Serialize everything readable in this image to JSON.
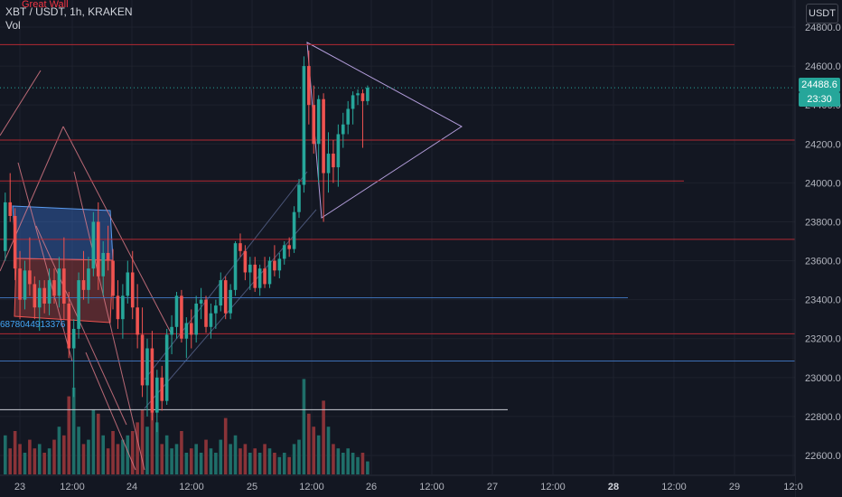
{
  "header": {
    "symbol": "XBT / USDT, 1h, KRAKEN",
    "volume_label": "Vol",
    "watermark": "Great Wall"
  },
  "currency_button": "USDT",
  "last_price_tag": "24488.6",
  "countdown_tag": "23:30",
  "annotation_text": "6878044913376",
  "colors": {
    "background": "#131722",
    "up": "#26a69a",
    "down": "#ef5350",
    "vol_up": "#1f6e69",
    "vol_down": "#8a3338",
    "red_level": "#b22833",
    "blue_level": "#3d6fb5",
    "white_line": "#c9ccd4",
    "triangle": "#b39ddb"
  },
  "chart_data": {
    "type": "candlestick",
    "price_axis": {
      "ticks": [
        24800,
        24600,
        24400,
        24200,
        24000,
        23800,
        23600,
        23400,
        23200,
        23000,
        22800,
        22600
      ],
      "labels": [
        "24800.0",
        "24600.0",
        "24400.0",
        "24200.0",
        "24000.0",
        "23800.0",
        "23600.0",
        "23400.0",
        "23200.0",
        "23000.0",
        "22800.0",
        "22600.0"
      ]
    },
    "time_axis": {
      "labels": [
        "23",
        "12:00",
        "24",
        "12:00",
        "25",
        "12:00",
        "26",
        "12:00",
        "27",
        "12:00",
        "28",
        "12:00",
        "29",
        "12:0"
      ],
      "bold_label": "28"
    },
    "last_price": 24488.6,
    "horizontal_levels": [
      {
        "price": 24710,
        "color": "red",
        "extent": "partial"
      },
      {
        "price": 24220,
        "color": "red",
        "extent": "full"
      },
      {
        "price": 24010,
        "color": "red",
        "extent": "partial"
      },
      {
        "price": 23710,
        "color": "red",
        "extent": "full"
      },
      {
        "price": 23410,
        "color": "blue",
        "extent": "partial"
      },
      {
        "price": 23225,
        "color": "red",
        "extent": "full"
      },
      {
        "price": 23085,
        "color": "blue",
        "extent": "full"
      },
      {
        "price": 22835,
        "color": "white",
        "extent": "partial"
      }
    ],
    "candles": [
      [
        23650,
        23950,
        23600,
        23900,
        18
      ],
      [
        23900,
        24050,
        23800,
        23830,
        12
      ],
      [
        23830,
        23870,
        23500,
        23560,
        20
      ],
      [
        23560,
        23650,
        23300,
        23400,
        14
      ],
      [
        23400,
        23600,
        23350,
        23550,
        10
      ],
      [
        23550,
        23720,
        23420,
        23480,
        16
      ],
      [
        23480,
        23520,
        23300,
        23360,
        12
      ],
      [
        23360,
        23500,
        23240,
        23460,
        14
      ],
      [
        23460,
        23500,
        23330,
        23380,
        10
      ],
      [
        23380,
        23560,
        23320,
        23500,
        12
      ],
      [
        23500,
        23560,
        23380,
        23420,
        16
      ],
      [
        23420,
        23620,
        23360,
        23560,
        22
      ],
      [
        23560,
        23720,
        23300,
        23380,
        18
      ],
      [
        23380,
        23440,
        23100,
        23150,
        36
      ],
      [
        23150,
        23300,
        22900,
        23250,
        40
      ],
      [
        23250,
        23540,
        23200,
        23500,
        22
      ],
      [
        23500,
        23650,
        23400,
        23450,
        14
      ],
      [
        23450,
        23620,
        23380,
        23560,
        16
      ],
      [
        23560,
        23850,
        23520,
        23800,
        30
      ],
      [
        23800,
        23900,
        23450,
        23520,
        28
      ],
      [
        23520,
        23700,
        23420,
        23640,
        18
      ],
      [
        23640,
        23780,
        23550,
        23600,
        12
      ],
      [
        23600,
        23660,
        23350,
        23420,
        20
      ],
      [
        23420,
        23500,
        23250,
        23300,
        14
      ],
      [
        23300,
        23480,
        23200,
        23420,
        16
      ],
      [
        23420,
        23600,
        23380,
        23540,
        18
      ],
      [
        23540,
        23650,
        23300,
        23360,
        20
      ],
      [
        23360,
        23480,
        23150,
        23220,
        24
      ],
      [
        23220,
        23360,
        22900,
        22960,
        30
      ],
      [
        22960,
        23200,
        22800,
        23150,
        22
      ],
      [
        23150,
        23240,
        22780,
        22820,
        34
      ],
      [
        22820,
        23040,
        22720,
        23000,
        24
      ],
      [
        23000,
        23060,
        22830,
        22880,
        14
      ],
      [
        22880,
        23250,
        22860,
        23220,
        18
      ],
      [
        23220,
        23320,
        23120,
        23260,
        12
      ],
      [
        23260,
        23440,
        23200,
        23420,
        14
      ],
      [
        23420,
        23450,
        23180,
        23200,
        20
      ],
      [
        23200,
        23310,
        23100,
        23280,
        10
      ],
      [
        23280,
        23350,
        23150,
        23220,
        12
      ],
      [
        23220,
        23420,
        23180,
        23380,
        14
      ],
      [
        23380,
        23460,
        23300,
        23400,
        10
      ],
      [
        23400,
        23420,
        23230,
        23260,
        16
      ],
      [
        23260,
        23380,
        23200,
        23330,
        12
      ],
      [
        23330,
        23400,
        23250,
        23370,
        10
      ],
      [
        23370,
        23540,
        23340,
        23500,
        16
      ],
      [
        23500,
        23520,
        23300,
        23330,
        26
      ],
      [
        23330,
        23480,
        23300,
        23450,
        14
      ],
      [
        23450,
        23700,
        23420,
        23690,
        18
      ],
      [
        23690,
        23740,
        23620,
        23650,
        12
      ],
      [
        23650,
        23680,
        23500,
        23540,
        14
      ],
      [
        23540,
        23620,
        23450,
        23580,
        10
      ],
      [
        23580,
        23620,
        23440,
        23460,
        12
      ],
      [
        23460,
        23580,
        23420,
        23560,
        10
      ],
      [
        23560,
        23620,
        23460,
        23480,
        14
      ],
      [
        23480,
        23620,
        23460,
        23600,
        12
      ],
      [
        23600,
        23680,
        23520,
        23550,
        10
      ],
      [
        23550,
        23640,
        23510,
        23610,
        8
      ],
      [
        23610,
        23700,
        23580,
        23680,
        10
      ],
      [
        23680,
        23720,
        23620,
        23660,
        8
      ],
      [
        23660,
        23880,
        23640,
        23850,
        14
      ],
      [
        23850,
        24020,
        23820,
        23990,
        16
      ],
      [
        23990,
        24650,
        23950,
        24600,
        44
      ],
      [
        24600,
        24680,
        24300,
        24400,
        28
      ],
      [
        24400,
        24500,
        24150,
        24200,
        22
      ],
      [
        24200,
        24450,
        24000,
        24430,
        18
      ],
      [
        24430,
        24460,
        23800,
        24050,
        34
      ],
      [
        24050,
        24260,
        23950,
        24150,
        22
      ],
      [
        24150,
        24220,
        24000,
        24080,
        14
      ],
      [
        24080,
        24300,
        23980,
        24250,
        12
      ],
      [
        24250,
        24360,
        24180,
        24300,
        10
      ],
      [
        24300,
        24420,
        24250,
        24380,
        12
      ],
      [
        24380,
        24470,
        24300,
        24450,
        10
      ],
      [
        24450,
        24480,
        24400,
        24460,
        8
      ],
      [
        24460,
        24480,
        24180,
        24420,
        10
      ],
      [
        24420,
        24500,
        24400,
        24488.6,
        6
      ]
    ]
  }
}
